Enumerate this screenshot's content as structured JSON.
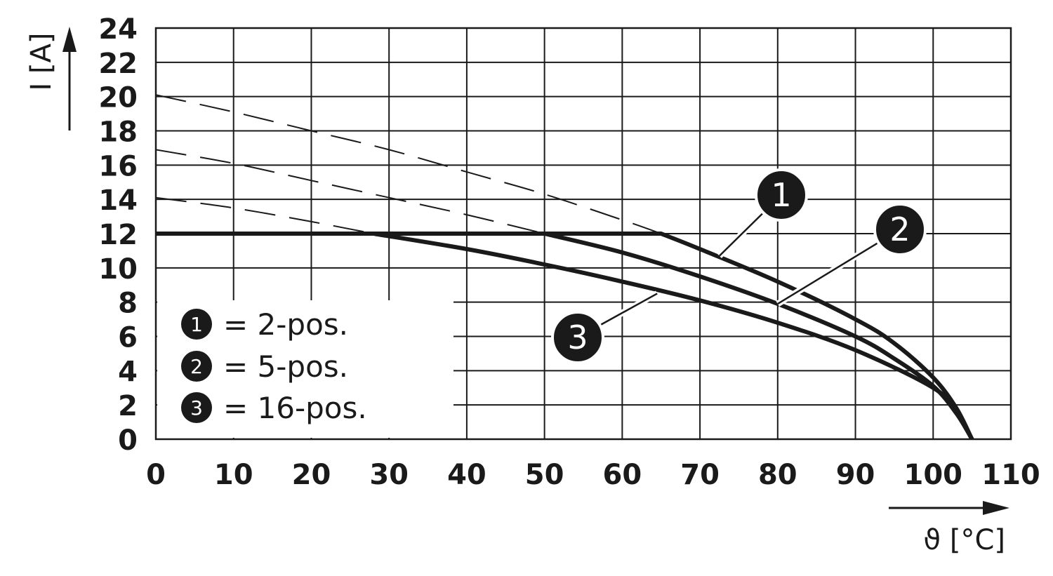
{
  "chart_data": {
    "type": "line",
    "title": "",
    "xlabel": "ϑ [°C]",
    "ylabel": "I [A]",
    "xlim": [
      0,
      110
    ],
    "ylim": [
      0,
      24
    ],
    "x_ticks": [
      "0",
      "10",
      "20",
      "30",
      "40",
      "50",
      "60",
      "70",
      "80",
      "90",
      "100",
      "110"
    ],
    "y_ticks": [
      "0",
      "2",
      "4",
      "6",
      "8",
      "10",
      "12",
      "14",
      "16",
      "18",
      "20",
      "22",
      "24"
    ],
    "grid": true,
    "colors": {
      "line": "#1a1a1a",
      "background": "#ffffff",
      "marker_fill": "#1a1a1a"
    },
    "limit_line": {
      "y": 12,
      "x_start": 0
    },
    "series": [
      {
        "marker": "1",
        "legend_label": "= 2-pos.",
        "dashed_points": [
          [
            0,
            20.1
          ],
          [
            10,
            19.1
          ],
          [
            20,
            18.0
          ],
          [
            30,
            16.9
          ],
          [
            40,
            15.6
          ],
          [
            50,
            14.3
          ],
          [
            60,
            12.8
          ],
          [
            65,
            12.0
          ]
        ],
        "solid_points": [
          [
            65,
            12.0
          ],
          [
            70,
            11.1
          ],
          [
            80,
            9.2
          ],
          [
            90,
            7.0
          ],
          [
            95,
            5.6
          ],
          [
            100,
            3.6
          ],
          [
            103,
            1.8
          ],
          [
            105,
            0
          ]
        ]
      },
      {
        "marker": "2",
        "legend_label": "= 5-pos.",
        "dashed_points": [
          [
            0,
            16.9
          ],
          [
            10,
            16.1
          ],
          [
            20,
            15.1
          ],
          [
            30,
            14.1
          ],
          [
            40,
            13.1
          ],
          [
            50,
            12.0
          ]
        ],
        "solid_points": [
          [
            50,
            12.0
          ],
          [
            60,
            10.9
          ],
          [
            70,
            9.5
          ],
          [
            80,
            7.9
          ],
          [
            90,
            6.0
          ],
          [
            95,
            4.7
          ],
          [
            100,
            3.1
          ],
          [
            103,
            1.5
          ],
          [
            105,
            0
          ]
        ]
      },
      {
        "marker": "3",
        "legend_label": "= 16-pos.",
        "dashed_points": [
          [
            0,
            14.1
          ],
          [
            10,
            13.5
          ],
          [
            20,
            12.7
          ],
          [
            28,
            12.0
          ]
        ],
        "solid_points": [
          [
            28,
            12.0
          ],
          [
            40,
            11.1
          ],
          [
            50,
            10.2
          ],
          [
            60,
            9.2
          ],
          [
            70,
            8.1
          ],
          [
            80,
            6.8
          ],
          [
            90,
            5.2
          ],
          [
            100,
            3.0
          ],
          [
            103,
            1.6
          ],
          [
            105,
            0
          ]
        ]
      }
    ]
  }
}
